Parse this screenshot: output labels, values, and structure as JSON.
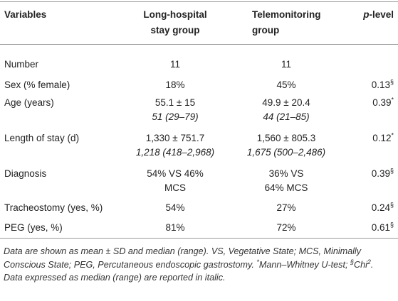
{
  "table": {
    "header": {
      "variables": "Variables",
      "long_hospital": [
        "Long-hospital",
        "stay group"
      ],
      "telemonitoring": [
        "Telemonitoring",
        "group"
      ],
      "p_level": {
        "italic": "p",
        "text": "-level"
      }
    },
    "rows": [
      {
        "variable": "Number",
        "long": {
          "lines": [
            "11"
          ]
        },
        "tele": {
          "lines": [
            "11"
          ]
        }
      },
      {
        "variable": "Sex (% female)",
        "long": {
          "lines": [
            "18%"
          ]
        },
        "tele": {
          "lines": [
            "45%"
          ]
        },
        "p": {
          "value": "0.13",
          "mark": "§"
        }
      },
      {
        "variable": "Age (years)",
        "long": {
          "lines": [
            "55.1 ± 15"
          ],
          "median": "51 (29–79)"
        },
        "tele": {
          "lines": [
            "49.9 ± 20.4"
          ],
          "median": "44 (21–85)"
        },
        "p": {
          "value": "0.39",
          "mark": "*"
        }
      },
      {
        "variable": "Length of stay (d)",
        "long": {
          "lines": [
            "1,330 ± 751.7"
          ],
          "median": "1,218 (418–2,968)"
        },
        "tele": {
          "lines": [
            "1,560 ± 805.3"
          ],
          "median": "1,675 (500–2,486)"
        },
        "p": {
          "value": "0.12",
          "mark": "*"
        }
      },
      {
        "variable": "Diagnosis",
        "long": {
          "lines": [
            "54% VS 46%",
            "MCS"
          ]
        },
        "tele": {
          "lines": [
            "36% VS",
            "64% MCS"
          ]
        },
        "p": {
          "value": "0.39",
          "mark": "§"
        }
      },
      {
        "variable": "Tracheostomy (yes, %)",
        "long": {
          "lines": [
            "54%"
          ]
        },
        "tele": {
          "lines": [
            "27%"
          ]
        },
        "p": {
          "value": "0.24",
          "mark": "§"
        }
      },
      {
        "variable": "PEG (yes, %)",
        "long": {
          "lines": [
            "81%"
          ]
        },
        "tele": {
          "lines": [
            "72%"
          ]
        },
        "p": {
          "value": "0.61",
          "mark": "§"
        }
      }
    ],
    "footnote": {
      "paragraph": [
        {
          "text": "Data are shown as mean ± SD and median (range). VS, Vegetative State; MCS, Minimally Conscious State; PEG, Percutaneous endoscopic gastrostomy. "
        },
        {
          "sup": "*"
        },
        {
          "text": "Mann–Whitney U-test; "
        },
        {
          "sup": "§"
        },
        {
          "text": "Chi"
        },
        {
          "sup": "2"
        },
        {
          "text": "."
        }
      ],
      "note": "Data expressed as median (range) are reported in italic."
    }
  }
}
